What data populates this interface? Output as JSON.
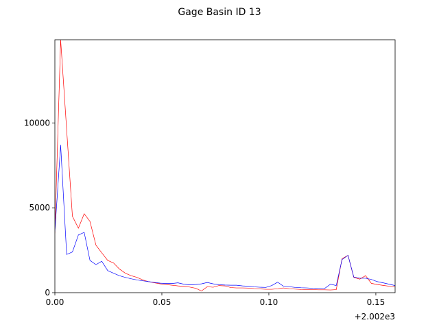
{
  "chart_data": {
    "type": "line",
    "title": "Gage Basin ID 13",
    "xlabel": "",
    "ylabel": "",
    "x_offset_label": "+2.002e3",
    "xlim": [
      0.0,
      0.159
    ],
    "ylim": [
      0,
      14900
    ],
    "x_ticks": [
      0.0,
      0.05,
      0.1,
      0.15
    ],
    "x_tick_labels": [
      "0.00",
      "0.05",
      "0.10",
      "0.15"
    ],
    "y_ticks": [
      0,
      5000,
      10000
    ],
    "y_tick_labels": [
      "0",
      "5000",
      "10000"
    ],
    "grid": false,
    "legend": "none",
    "series": [
      {
        "color": "#ff0000",
        "x": [
          0.0,
          0.0027,
          0.0082,
          0.011,
          0.0137,
          0.0164,
          0.0192,
          0.0219,
          0.0247,
          0.0274,
          0.0301,
          0.0329,
          0.0356,
          0.0384,
          0.0411,
          0.0438,
          0.0466,
          0.0493,
          0.0521,
          0.0548,
          0.0575,
          0.0603,
          0.063,
          0.0658,
          0.0685,
          0.0712,
          0.074,
          0.0767,
          0.0795,
          0.0822,
          0.0849,
          0.0877,
          0.0904,
          0.0932,
          0.0959,
          0.0986,
          0.1014,
          0.1041,
          0.1068,
          0.1096,
          0.1123,
          0.1151,
          0.1178,
          0.1205,
          0.1233,
          0.126,
          0.1288,
          0.1315,
          0.1342,
          0.137,
          0.1397,
          0.1425,
          0.1452,
          0.1479,
          0.1507,
          0.1534,
          0.1562,
          0.159
        ],
        "values": [
          3500,
          14900,
          4500,
          3800,
          4650,
          4200,
          2800,
          2350,
          1900,
          1750,
          1400,
          1150,
          1000,
          900,
          750,
          650,
          580,
          520,
          480,
          440,
          400,
          370,
          330,
          260,
          100,
          350,
          320,
          420,
          400,
          300,
          280,
          280,
          270,
          240,
          220,
          200,
          200,
          230,
          280,
          230,
          210,
          190,
          180,
          180,
          170,
          170,
          160,
          180,
          2000,
          2200,
          900,
          800,
          1000,
          550,
          480,
          430,
          380,
          330
        ]
      },
      {
        "color": "#0000ff",
        "x": [
          0.0,
          0.0027,
          0.0055,
          0.0082,
          0.011,
          0.0137,
          0.0164,
          0.0192,
          0.0219,
          0.0247,
          0.0274,
          0.0301,
          0.0329,
          0.0356,
          0.0384,
          0.0411,
          0.0438,
          0.0466,
          0.0493,
          0.0521,
          0.0548,
          0.0575,
          0.0603,
          0.063,
          0.0658,
          0.0685,
          0.0712,
          0.074,
          0.0767,
          0.0795,
          0.0822,
          0.0849,
          0.0877,
          0.0904,
          0.0932,
          0.0959,
          0.0986,
          0.1014,
          0.1041,
          0.1068,
          0.1096,
          0.1123,
          0.1151,
          0.1178,
          0.1205,
          0.1233,
          0.126,
          0.1288,
          0.1315,
          0.1342,
          0.137,
          0.1397,
          0.1425,
          0.1452,
          0.1479,
          0.1507,
          0.1534,
          0.1562,
          0.159
        ],
        "values": [
          3600,
          8700,
          2250,
          2400,
          3400,
          3550,
          1900,
          1650,
          1850,
          1300,
          1150,
          1000,
          900,
          820,
          750,
          700,
          650,
          600,
          560,
          540,
          540,
          580,
          500,
          460,
          480,
          520,
          600,
          520,
          470,
          450,
          440,
          440,
          400,
          380,
          340,
          320,
          310,
          420,
          620,
          380,
          350,
          310,
          290,
          280,
          260,
          250,
          240,
          500,
          420,
          1950,
          2200,
          920,
          850,
          850,
          780,
          650,
          580,
          500,
          420
        ]
      }
    ]
  }
}
